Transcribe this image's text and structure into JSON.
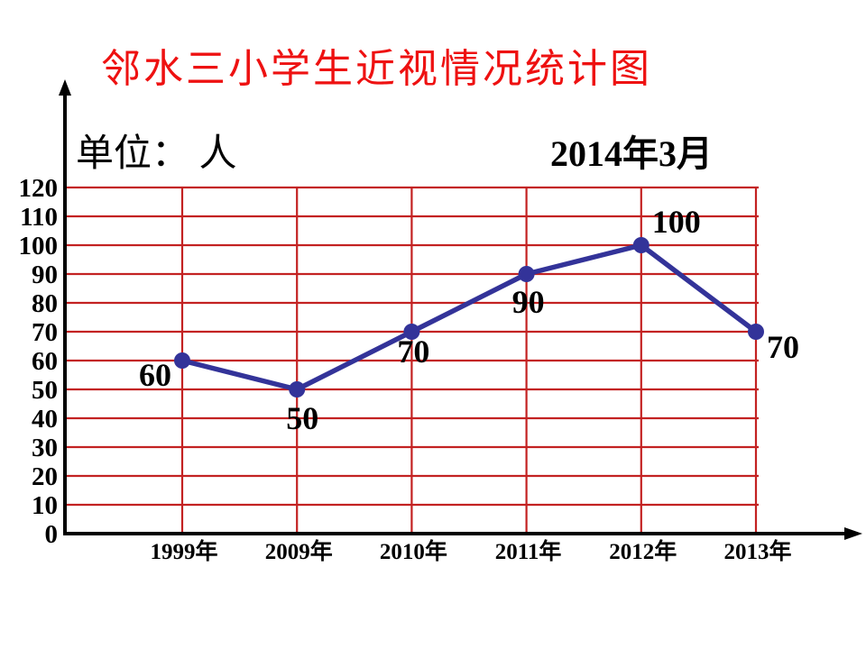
{
  "title": "邻水三小学生近视情况统计图",
  "unit_label": "单位：  人",
  "date_label": "2014年3月",
  "colors": {
    "title": "#EE1111",
    "grid": "#C32222",
    "line": "#333399",
    "axis": "#000000",
    "text": "#000000",
    "background": "#FFFFFF"
  },
  "chart_data": {
    "type": "line",
    "title": "邻水三小学生近视情况统计图",
    "unit": "单位：人",
    "date": "2014年3月",
    "categories": [
      "1999年",
      "2009年",
      "2010年",
      "2011年",
      "2012年",
      "2013年"
    ],
    "values": [
      60,
      50,
      70,
      90,
      100,
      70
    ],
    "point_labels": [
      "60",
      "50",
      "70",
      "90",
      "100",
      "70"
    ],
    "yticks": [
      0,
      10,
      20,
      30,
      40,
      50,
      60,
      70,
      80,
      90,
      100,
      110,
      120
    ],
    "ylim": [
      0,
      120
    ],
    "xlabel": "",
    "ylabel": "人",
    "grid": true,
    "legend": "none"
  }
}
